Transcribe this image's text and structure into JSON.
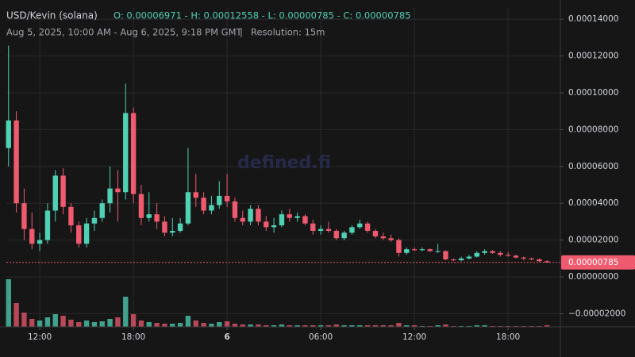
{
  "watermark": "defined.fi",
  "chart_data": {
    "type": "candlestick",
    "title": "USD/Kevin (solana)",
    "ohlc_text": "O: 0.00006971 - H: 0.00012558 - L: 0.00000785 - C: 0.00000785",
    "subtitle": "Aug 5, 2025, 10:00 AM - Aug 6, 2025, 9:18 PM GMT",
    "resolution": "Resolution: 15m",
    "up_color": "#4fd1b4",
    "down_color": "#ef5a6f",
    "grid": true,
    "xlim": [
      9.86,
      45.35
    ],
    "xticks": [
      {
        "value": 12,
        "label": "12:00"
      },
      {
        "value": 18,
        "label": "18:00"
      },
      {
        "value": 24,
        "label": "6"
      },
      {
        "value": 30,
        "label": "06:00"
      },
      {
        "value": 36,
        "label": "12:00"
      },
      {
        "value": 42,
        "label": "18:00"
      }
    ],
    "ylim": [
      -2.716e-05,
      0.00014612
    ],
    "yticks": [
      {
        "value": 0.00014,
        "label": "0.00014000"
      },
      {
        "value": 0.00012,
        "label": "0.00012000"
      },
      {
        "value": 0.0001,
        "label": "0.00010000"
      },
      {
        "value": 8e-05,
        "label": "0.00008000"
      },
      {
        "value": 6e-05,
        "label": "0.00006000"
      },
      {
        "value": 4e-05,
        "label": "0.00004000"
      },
      {
        "value": 2e-05,
        "label": "0.00002000"
      },
      {
        "value": 0,
        "label": "0.00000000"
      },
      {
        "value": -2e-05,
        "label": "−0.00002000"
      }
    ],
    "last_price": 7.85e-06,
    "x": [
      10,
      10.5,
      11,
      11.5,
      12,
      12.5,
      13,
      13.5,
      14,
      14.5,
      15,
      15.5,
      16,
      16.5,
      17,
      17.5,
      18,
      18.5,
      19,
      19.5,
      20,
      20.5,
      21,
      21.5,
      22,
      22.5,
      23,
      23.5,
      24,
      24.5,
      25,
      25.5,
      26,
      26.5,
      27,
      27.5,
      28,
      28.5,
      29,
      29.5,
      30,
      30.5,
      31,
      31.5,
      32,
      32.5,
      33,
      33.5,
      34,
      34.5,
      35,
      35.5,
      36,
      36.5,
      37,
      37.5,
      38,
      38.5,
      39,
      39.5,
      40,
      40.5,
      41,
      41.5,
      42,
      42.5,
      43,
      43.5,
      44,
      44.5
    ],
    "open": [
      7e-05,
      8.5e-05,
      4e-05,
      2.6e-05,
      1.8e-05,
      2e-05,
      3.6e-05,
      5.5e-05,
      3.8e-05,
      2.8e-05,
      1.8e-05,
      2.9e-05,
      3.2e-05,
      4e-05,
      4.8e-05,
      4.6e-05,
      8.9e-05,
      4.5e-05,
      3.2e-05,
      3.4e-05,
      3e-05,
      2.4e-05,
      2.5e-05,
      2.9e-05,
      4.6e-05,
      4.3e-05,
      3.6e-05,
      3.9e-05,
      4.4e-05,
      4.1e-05,
      3.2e-05,
      3e-05,
      3.7e-05,
      3e-05,
      2.7e-05,
      2.8e-05,
      3.4e-05,
      3.2e-05,
      3.3e-05,
      2.9e-05,
      2.5e-05,
      2.6e-05,
      2.5e-05,
      2.1e-05,
      2.4e-05,
      2.7e-05,
      2.9e-05,
      2.5e-05,
      2.2e-05,
      2.1e-05,
      2e-05,
      1.3e-05,
      1.5e-05,
      1.45e-05,
      1.5e-05,
      1.4e-05,
      1.4e-05,
      9.5e-06,
      9e-06,
      1e-05,
      1.1e-05,
      1.3e-05,
      1.4e-05,
      1.3e-05,
      1.2e-05,
      1.15e-05,
      1.05e-05,
      1e-05,
      9.5e-06,
      8.5e-06
    ],
    "high": [
      0.00012558,
      9e-05,
      4.8e-05,
      3.5e-05,
      2.4e-05,
      4e-05,
      5.8e-05,
      5.9e-05,
      4e-05,
      3e-05,
      3.2e-05,
      3.6e-05,
      4.2e-05,
      6e-05,
      5.8e-05,
      0.000105,
      9.2e-05,
      5e-05,
      4.6e-05,
      4e-05,
      3.3e-05,
      3.2e-05,
      3.2e-05,
      7e-05,
      5.6e-05,
      4.6e-05,
      4.4e-05,
      5.2e-05,
      5.6e-05,
      4.3e-05,
      3.6e-05,
      3.9e-05,
      3.9e-05,
      3.3e-05,
      3.2e-05,
      3.6e-05,
      3.7e-05,
      3.5e-05,
      3.4e-05,
      3.1e-05,
      2.8e-05,
      3e-05,
      2.6e-05,
      2.5e-05,
      2.8e-05,
      3.1e-05,
      3e-05,
      2.6e-05,
      2.4e-05,
      2.3e-05,
      2.1e-05,
      1.6e-05,
      1.6e-05,
      1.6e-05,
      1.55e-05,
      1.8e-05,
      1.45e-05,
      1e-05,
      1.1e-05,
      1.2e-05,
      1.4e-05,
      1.5e-05,
      1.45e-05,
      1.4e-05,
      1.35e-05,
      1.2e-05,
      1.1e-05,
      1.05e-05,
      1e-05,
      9e-06
    ],
    "low": [
      6e-05,
      3.5e-05,
      2e-05,
      1.5e-05,
      1.4e-05,
      1.8e-05,
      3e-05,
      3.4e-05,
      2.4e-05,
      1.6e-05,
      1.6e-05,
      2.5e-05,
      3e-05,
      3.5e-05,
      3e-05,
      4.2e-05,
      4e-05,
      2.8e-05,
      3e-05,
      2.6e-05,
      2.2e-05,
      2.2e-05,
      2.4e-05,
      2.8e-05,
      3.8e-05,
      3.4e-05,
      3.4e-05,
      3.7e-05,
      3.8e-05,
      3e-05,
      2.8e-05,
      2.8e-05,
      2.8e-05,
      2.5e-05,
      2.4e-05,
      2.7e-05,
      3e-05,
      3e-05,
      2.8e-05,
      2.3e-05,
      2.3e-05,
      2.4e-05,
      2e-05,
      2e-05,
      2.3e-05,
      2.6e-05,
      2.4e-05,
      2.1e-05,
      2e-05,
      1.9e-05,
      1.1e-05,
      1.2e-05,
      1.4e-05,
      1.4e-05,
      1.35e-05,
      1.3e-05,
      9e-06,
      8.5e-06,
      8.5e-06,
      9.5e-06,
      1.05e-05,
      1.2e-05,
      1.25e-05,
      1.1e-05,
      1.1e-05,
      1e-05,
      9e-06,
      9e-06,
      8e-06,
      7.85e-06
    ],
    "close": [
      8.5e-05,
      4e-05,
      2.6e-05,
      1.8e-05,
      2e-05,
      3.6e-05,
      5.5e-05,
      3.8e-05,
      2.8e-05,
      1.8e-05,
      2.9e-05,
      3.2e-05,
      4e-05,
      4.8e-05,
      4.6e-05,
      8.9e-05,
      4.5e-05,
      3.2e-05,
      3.4e-05,
      3e-05,
      2.4e-05,
      2.5e-05,
      2.9e-05,
      4.6e-05,
      4.3e-05,
      3.6e-05,
      3.9e-05,
      4.4e-05,
      4.1e-05,
      3.2e-05,
      3e-05,
      3.7e-05,
      3e-05,
      2.7e-05,
      2.8e-05,
      3.4e-05,
      3.2e-05,
      3.3e-05,
      2.9e-05,
      2.5e-05,
      2.6e-05,
      2.5e-05,
      2.1e-05,
      2.4e-05,
      2.7e-05,
      2.9e-05,
      2.5e-05,
      2.2e-05,
      2.1e-05,
      2e-05,
      1.3e-05,
      1.5e-05,
      1.45e-05,
      1.5e-05,
      1.4e-05,
      1.4e-05,
      9.5e-06,
      9e-06,
      1e-05,
      1.1e-05,
      1.3e-05,
      1.4e-05,
      1.3e-05,
      1.2e-05,
      1.15e-05,
      1.05e-05,
      1e-05,
      9.5e-06,
      8.5e-06,
      7.85e-06
    ],
    "volume": [
      60,
      30,
      18,
      10,
      8,
      12,
      16,
      14,
      9,
      6,
      8,
      6,
      7,
      10,
      12,
      38,
      16,
      8,
      6,
      5,
      4,
      4,
      5,
      14,
      8,
      5,
      4,
      6,
      7,
      4,
      3,
      3,
      3,
      2,
      2,
      3,
      2,
      2,
      2,
      2,
      2,
      2,
      3,
      2,
      2,
      2,
      2,
      2,
      2,
      2,
      5,
      2,
      2,
      1,
      1,
      2,
      3,
      1,
      1,
      1,
      2,
      2,
      1,
      1,
      1,
      1,
      1,
      1,
      1,
      2
    ]
  }
}
